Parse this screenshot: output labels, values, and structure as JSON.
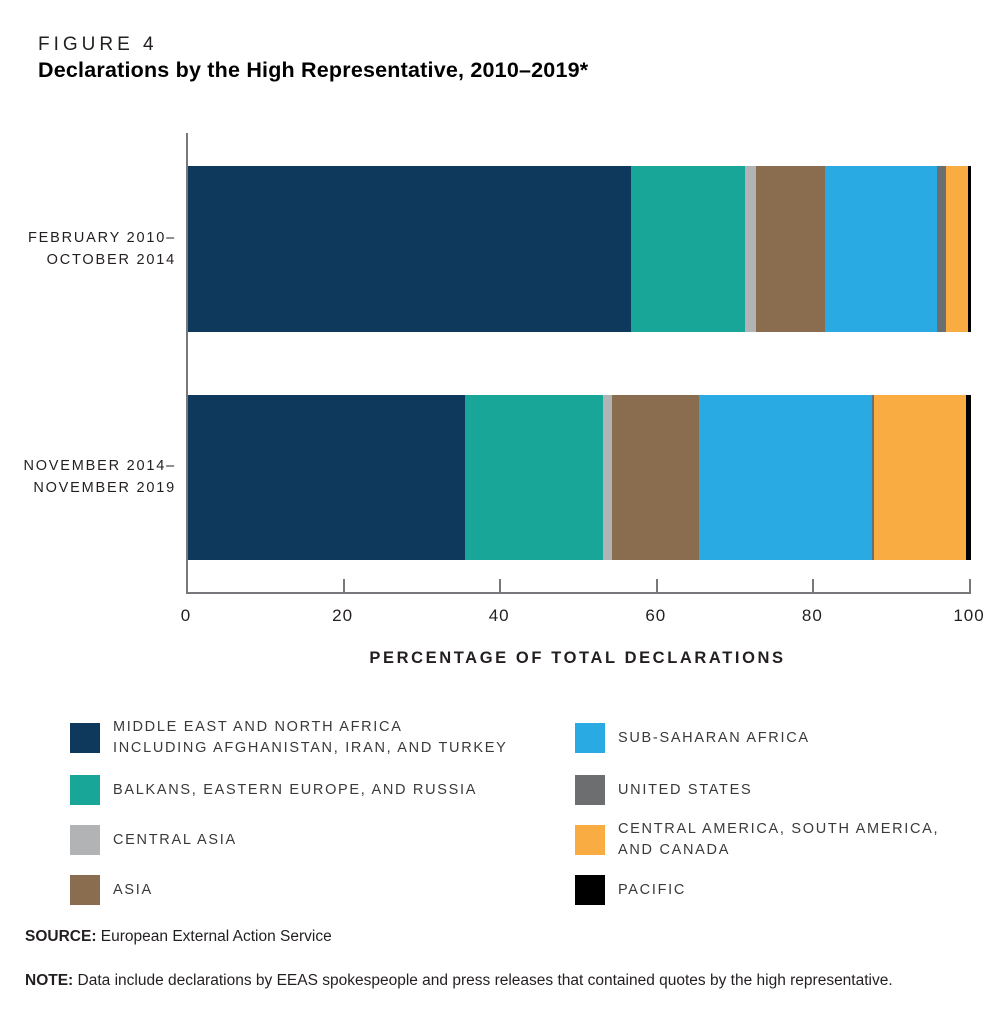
{
  "header": {
    "figure_label": "FIGURE 4",
    "title": "Declarations by the High Representative, 2010–2019*"
  },
  "chart_data": {
    "type": "bar",
    "orientation": "horizontal-stacked",
    "title": "Declarations by the High Representative, 2010–2019*",
    "xlabel": "PERCENTAGE OF TOTAL DECLARATIONS",
    "xlim": [
      0,
      100
    ],
    "x_ticks": [
      0,
      20,
      40,
      60,
      80,
      100
    ],
    "grid": false,
    "categories": [
      {
        "label_lines": [
          "FEBRUARY 2010–",
          "OCTOBER 2014"
        ]
      },
      {
        "label_lines": [
          "NOVEMBER 2014–",
          "NOVEMBER 2019"
        ]
      }
    ],
    "series": [
      {
        "name": "MIDDLE EAST AND NORTH AFRICA INCLUDING AFGHANISTAN, IRAN, AND TURKEY",
        "slug": "middle-east-north-africa",
        "color": "#0e395c",
        "values": [
          56.6,
          35.4
        ]
      },
      {
        "name": "BALKANS, EASTERN EUROPE, AND RUSSIA",
        "slug": "balkans-eastern-europe-russia",
        "color": "#17a697",
        "values": [
          14.5,
          17.6
        ]
      },
      {
        "name": "CENTRAL ASIA",
        "slug": "central-asia",
        "color": "#b1b3b5",
        "values": [
          1.4,
          1.1
        ]
      },
      {
        "name": "ASIA",
        "slug": "asia",
        "color": "#8a6d4f",
        "values": [
          8.8,
          11.2
        ]
      },
      {
        "name": "SUB-SAHARAN AFRICA",
        "slug": "sub-saharan-africa",
        "color": "#29aae2",
        "values": [
          14.3,
          22.0
        ]
      },
      {
        "name": "UNITED STATES",
        "slug": "united-states",
        "color": "#6d6e70",
        "values": [
          1.2,
          0.3
        ]
      },
      {
        "name": "CENTRAL AMERICA, SOUTH AMERICA, AND CANADA",
        "slug": "central-america-south-america-canada",
        "color": "#f9ac42",
        "values": [
          2.8,
          11.8
        ]
      },
      {
        "name": "PACIFIC",
        "slug": "pacific",
        "color": "#000000",
        "values": [
          0.4,
          0.6
        ]
      }
    ],
    "legend_position": "bottom"
  },
  "legend": {
    "columns": [
      [
        {
          "slug": "middle-east-north-africa",
          "color": "#0e395c",
          "label_lines": [
            "MIDDLE EAST AND NORTH AFRICA",
            "INCLUDING AFGHANISTAN, IRAN, AND TURKEY"
          ]
        },
        {
          "slug": "balkans-eastern-europe-russia",
          "color": "#17a697",
          "label_lines": [
            "BALKANS, EASTERN EUROPE, AND RUSSIA"
          ]
        },
        {
          "slug": "central-asia",
          "color": "#b1b3b5",
          "label_lines": [
            "CENTRAL ASIA"
          ]
        },
        {
          "slug": "asia",
          "color": "#8a6d4f",
          "label_lines": [
            "ASIA"
          ]
        }
      ],
      [
        {
          "slug": "sub-saharan-africa",
          "color": "#29aae2",
          "label_lines": [
            "SUB-SAHARAN AFRICA"
          ]
        },
        {
          "slug": "united-states",
          "color": "#6d6e70",
          "label_lines": [
            "UNITED STATES"
          ]
        },
        {
          "slug": "central-america-south-america-canada",
          "color": "#f9ac42",
          "label_lines": [
            "CENTRAL AMERICA, SOUTH AMERICA,",
            "AND CANADA"
          ]
        },
        {
          "slug": "pacific",
          "color": "#000000",
          "label_lines": [
            "PACIFIC"
          ]
        }
      ]
    ]
  },
  "source": {
    "label": "SOURCE:",
    "text": "European External Action Service"
  },
  "note": {
    "label": "NOTE:",
    "text": "Data include declarations by EEAS spokespeople and press releases that contained quotes by the high representative."
  }
}
